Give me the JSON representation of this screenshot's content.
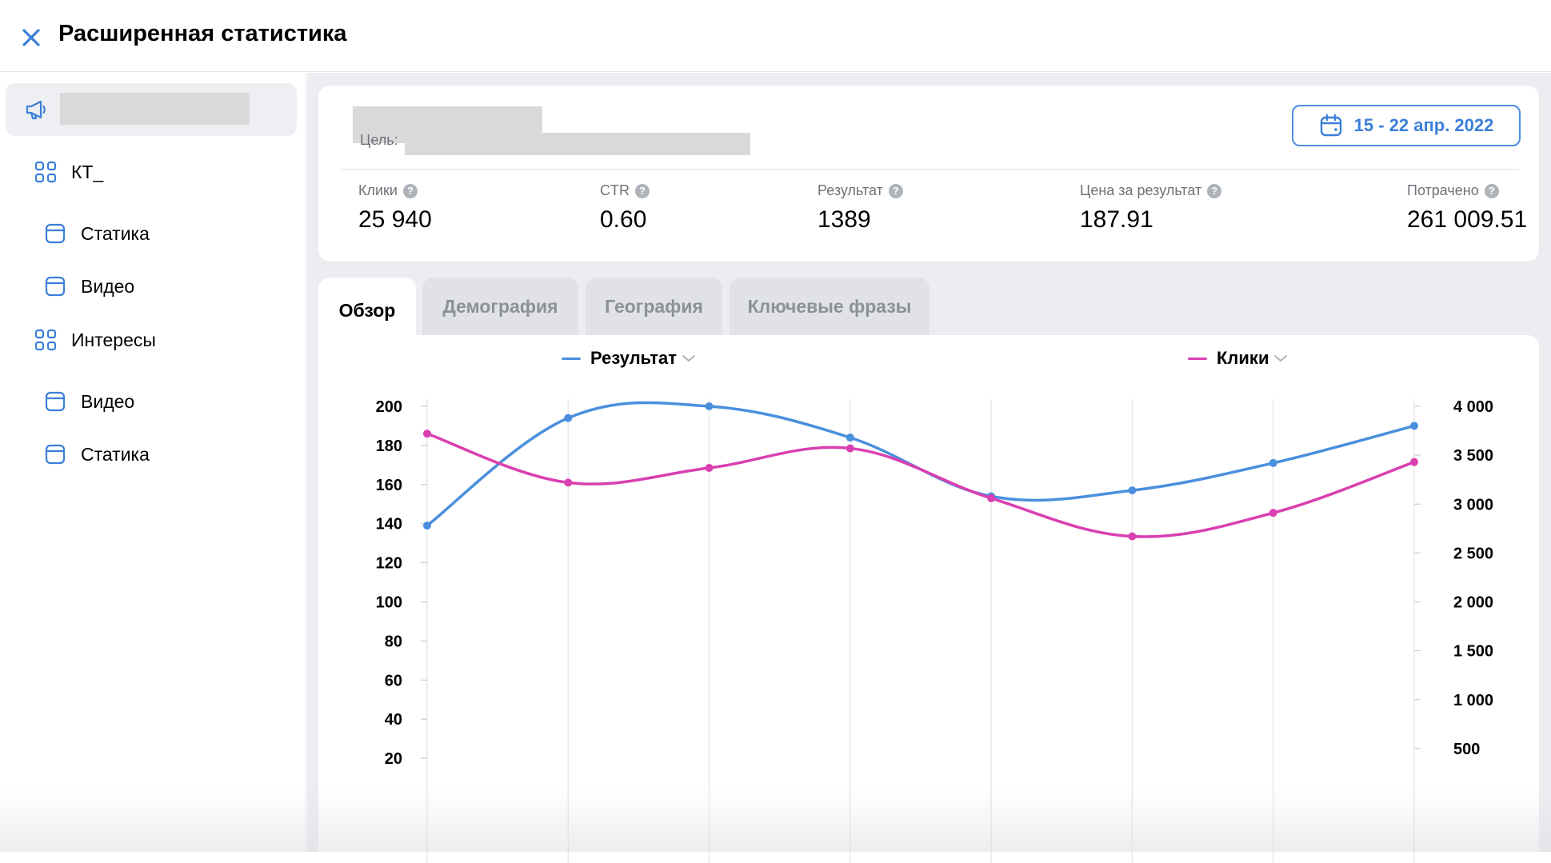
{
  "header": {
    "title": "Расширенная статистика"
  },
  "sidebar": {
    "items": [
      {
        "label": "КТ_",
        "icon": "grid-icon"
      },
      {
        "label": "Статика",
        "icon": "banner-icon"
      },
      {
        "label": "Видео",
        "icon": "banner-icon"
      },
      {
        "label": "Интересы",
        "icon": "grid-icon"
      },
      {
        "label": "Видео",
        "icon": "banner-icon"
      },
      {
        "label": "Статика",
        "icon": "banner-icon"
      }
    ]
  },
  "summary": {
    "goal_label": "Цель:",
    "date_range": "15 - 22 апр. 2022",
    "metrics": [
      {
        "label": "Клики",
        "value": "25 940"
      },
      {
        "label": "CTR",
        "value": "0.60"
      },
      {
        "label": "Результат",
        "value": "1389"
      },
      {
        "label": "Цена за результат",
        "value": "187.91"
      },
      {
        "label": "Потрачено",
        "value": "261 009.51"
      }
    ]
  },
  "tabs": [
    {
      "label": "Обзор",
      "active": true
    },
    {
      "label": "Демография",
      "active": false
    },
    {
      "label": "География",
      "active": false
    },
    {
      "label": "Ключевые фразы",
      "active": false
    }
  ],
  "colors": {
    "accent": "#3b7fd8",
    "result_series": "#4a8fdd",
    "clicks_series": "#d93fb0"
  },
  "chart_data": {
    "type": "line",
    "x": [
      1,
      2,
      3,
      4,
      5,
      6,
      7,
      8
    ],
    "series": [
      {
        "name": "Результат",
        "axis": "left",
        "values": [
          139,
          194,
          200,
          184,
          154,
          157,
          171,
          190
        ]
      },
      {
        "name": "Клики",
        "axis": "right",
        "values": [
          3720,
          3220,
          3370,
          3570,
          3060,
          2670,
          2910,
          3430
        ]
      }
    ],
    "y_left": {
      "ticks": [
        "20",
        "40",
        "60",
        "80",
        "100",
        "120",
        "140",
        "160",
        "180",
        "200"
      ]
    },
    "y_right": {
      "ticks": [
        "500",
        "1 000",
        "1 500",
        "2 000",
        "2 500",
        "3 000",
        "3 500",
        "4 000"
      ]
    },
    "ylim_left": [
      0,
      200
    ],
    "ylim_right": [
      0,
      4000
    ],
    "grid": "vertical"
  }
}
